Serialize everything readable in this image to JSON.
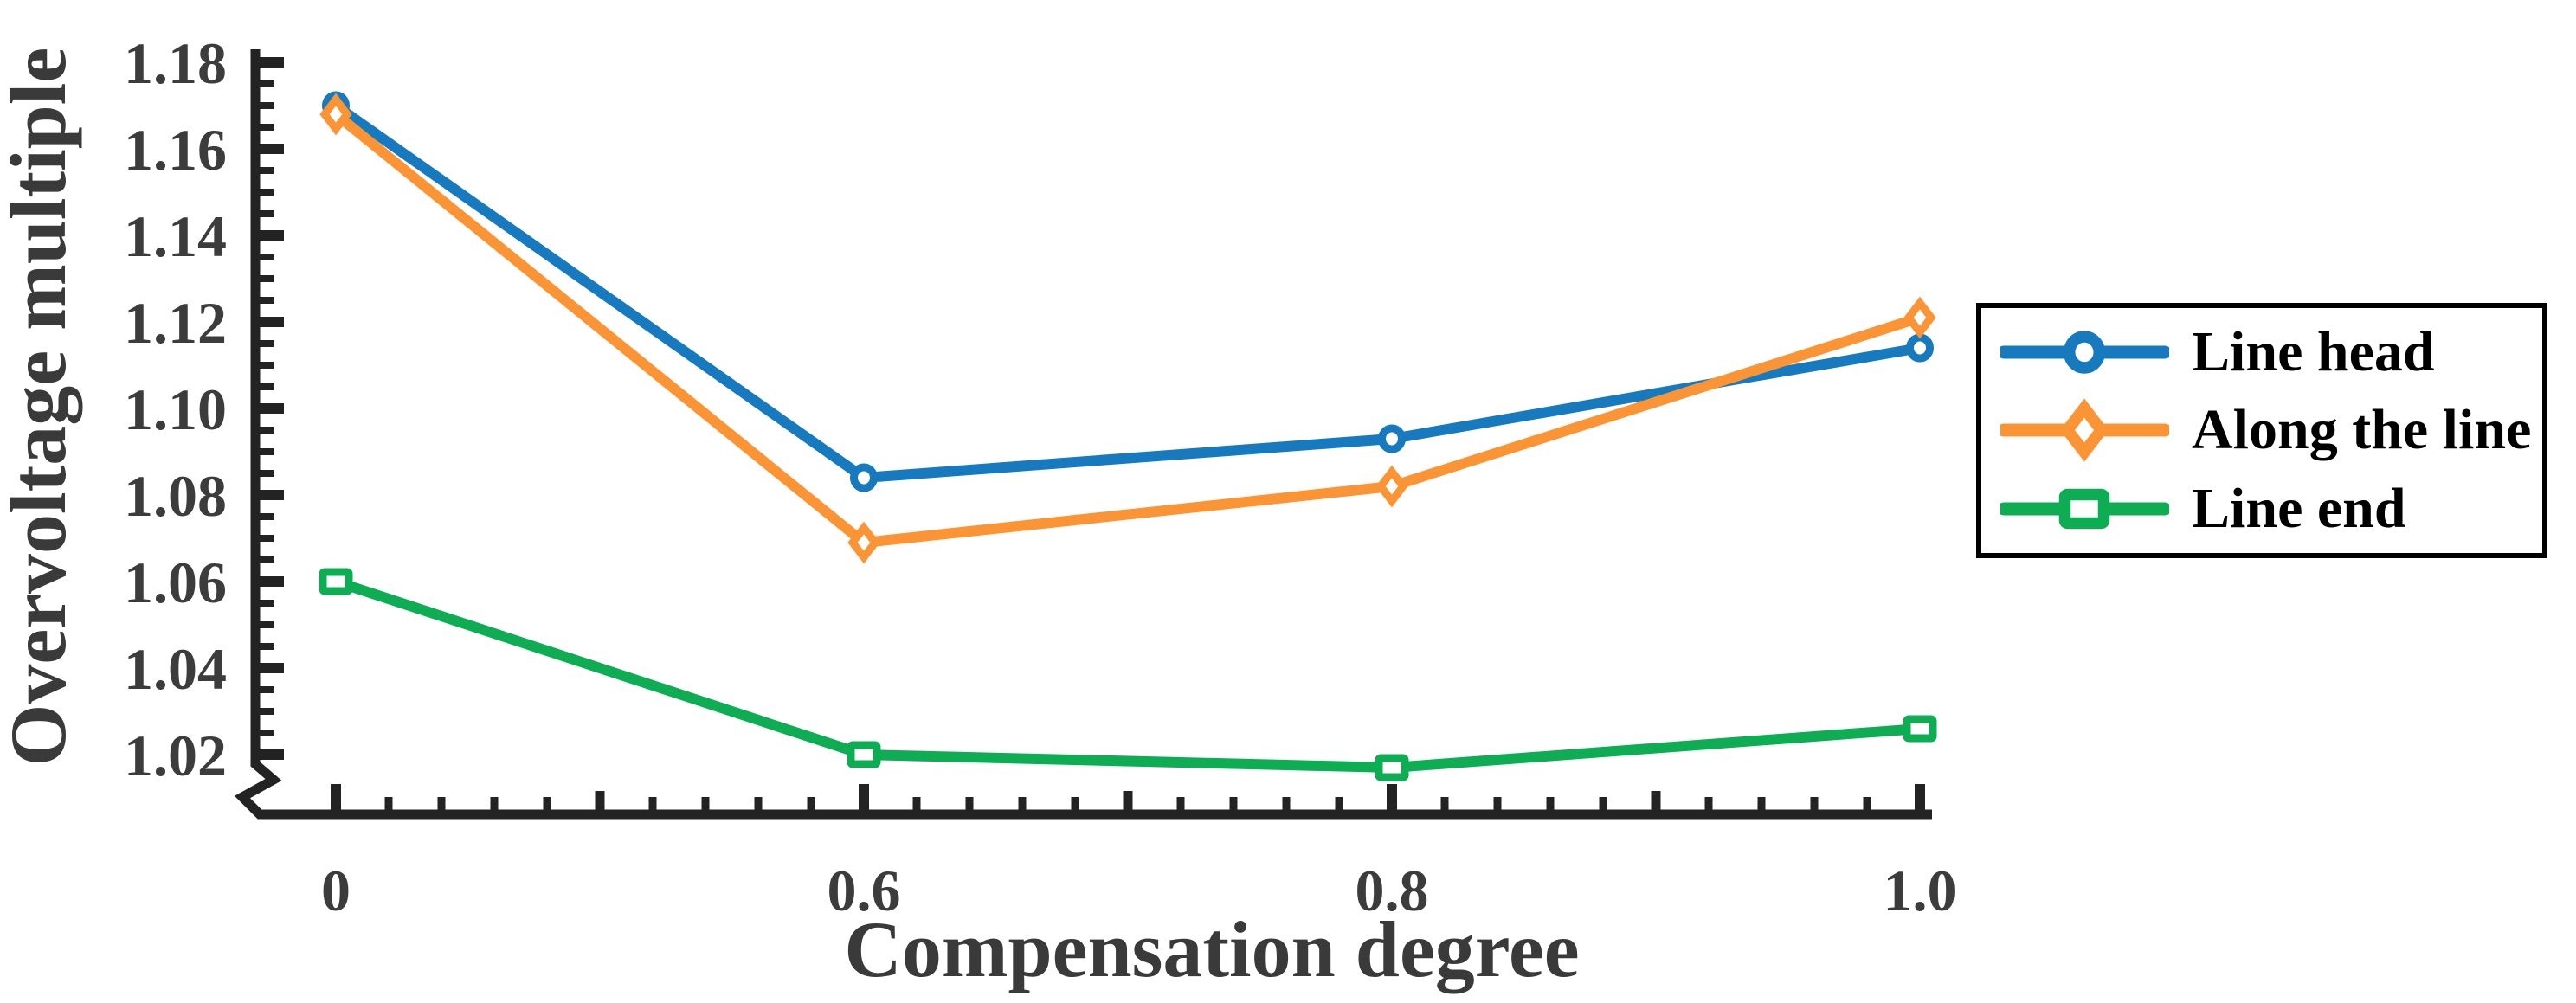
{
  "chart_data": {
    "type": "line",
    "title": "",
    "xlabel": "Compensation degree",
    "ylabel": "Overvoltage multiple",
    "x": [
      0,
      0.6,
      0.8,
      1.0
    ],
    "x_tick_labels": [
      "0",
      "0.6",
      "0.8",
      "1.0"
    ],
    "y_tick_labels": [
      "1.02",
      "1.04",
      "1.06",
      "1.08",
      "1.10",
      "1.12",
      "1.14",
      "1.16",
      "1.18"
    ],
    "y_major_ticks": [
      1.02,
      1.04,
      1.06,
      1.08,
      1.1,
      1.12,
      1.14,
      1.16,
      1.18
    ],
    "ylim": [
      1.015,
      1.183
    ],
    "y_axis_break": true,
    "grid": false,
    "legend_position": "right",
    "axis_color": "#232323",
    "tick_label_color": "#3C3C3C",
    "axis_title_color": "#3A3A3A",
    "legend_text_color": "#000000",
    "series": [
      {
        "name": "Line head",
        "color": "#1779BE",
        "marker": "circle",
        "values": [
          1.17,
          1.084,
          1.093,
          1.114
        ]
      },
      {
        "name": "Along the line",
        "color": "#FB9434",
        "marker": "diamond",
        "values": [
          1.168,
          1.069,
          1.082,
          1.121
        ]
      },
      {
        "name": "Line end",
        "color": "#0EAC53",
        "marker": "square",
        "values": [
          1.06,
          1.02,
          1.017,
          1.026
        ]
      }
    ]
  }
}
